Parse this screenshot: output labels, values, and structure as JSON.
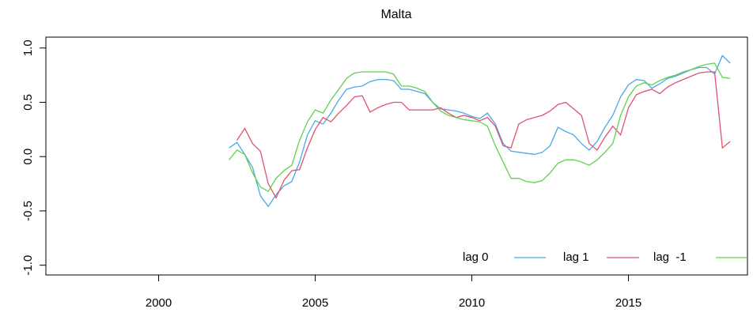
{
  "chart_data": {
    "type": "line",
    "title": "Malta",
    "x": [
      2002.25,
      2002.5,
      2002.75,
      2003,
      2003.25,
      2003.5,
      2003.75,
      2004,
      2004.25,
      2004.5,
      2004.75,
      2005,
      2005.25,
      2005.5,
      2005.75,
      2006,
      2006.25,
      2006.5,
      2006.75,
      2007,
      2007.25,
      2007.5,
      2007.75,
      2008,
      2008.25,
      2008.5,
      2008.75,
      2009,
      2009.25,
      2009.5,
      2009.75,
      2010,
      2010.25,
      2010.5,
      2010.75,
      2011,
      2011.25,
      2011.5,
      2011.75,
      2012,
      2012.25,
      2012.5,
      2012.75,
      2013,
      2013.25,
      2013.5,
      2013.75,
      2014,
      2014.25,
      2014.5,
      2014.75,
      2015,
      2015.25,
      2015.5,
      2015.75,
      2016,
      2016.25,
      2016.5,
      2016.75,
      2017,
      2017.25,
      2017.5,
      2017.75,
      2018,
      2018.25
    ],
    "series": [
      {
        "name": "lag 0",
        "color": "#4aa8e8",
        "values": [
          0.08,
          0.13,
          0.02,
          -0.1,
          -0.36,
          -0.46,
          -0.35,
          -0.27,
          -0.23,
          -0.05,
          0.2,
          0.33,
          0.3,
          0.4,
          0.52,
          0.62,
          0.64,
          0.65,
          0.69,
          0.71,
          0.71,
          0.7,
          0.62,
          0.62,
          0.6,
          0.58,
          0.5,
          0.44,
          0.43,
          0.42,
          0.4,
          0.37,
          0.35,
          0.4,
          0.3,
          0.12,
          0.05,
          0.04,
          0.03,
          0.02,
          0.04,
          0.1,
          0.27,
          0.23,
          0.2,
          0.12,
          0.06,
          0.14,
          0.27,
          0.38,
          0.55,
          0.66,
          0.71,
          0.7,
          0.63,
          0.67,
          0.72,
          0.74,
          0.77,
          0.8,
          0.82,
          0.82,
          0.76,
          0.93,
          0.86
        ]
      },
      {
        "name": "lag 1",
        "color": "#df536b",
        "values": [
          null,
          0.15,
          0.26,
          0.12,
          0.05,
          -0.25,
          -0.38,
          -0.22,
          -0.13,
          -0.12,
          0.08,
          0.25,
          0.36,
          0.32,
          0.4,
          0.47,
          0.55,
          0.56,
          0.41,
          0.45,
          0.48,
          0.5,
          0.5,
          0.43,
          0.43,
          0.43,
          0.43,
          0.45,
          0.4,
          0.36,
          0.38,
          0.36,
          0.33,
          0.36,
          0.28,
          0.1,
          0.08,
          0.3,
          0.34,
          0.36,
          0.38,
          0.42,
          0.48,
          0.5,
          0.44,
          0.38,
          0.12,
          0.06,
          0.18,
          0.28,
          0.2,
          0.45,
          0.57,
          0.6,
          0.62,
          0.58,
          0.64,
          0.68,
          0.71,
          0.74,
          0.77,
          0.78,
          0.78,
          0.08,
          0.14
        ]
      },
      {
        "name": "lag  -1",
        "color": "#61d04f",
        "values": [
          -0.03,
          0.06,
          0.02,
          -0.15,
          -0.28,
          -0.32,
          -0.2,
          -0.13,
          -0.08,
          0.15,
          0.32,
          0.43,
          0.4,
          0.52,
          0.62,
          0.72,
          0.77,
          0.78,
          0.78,
          0.78,
          0.78,
          0.76,
          0.65,
          0.65,
          0.63,
          0.6,
          0.5,
          0.42,
          0.38,
          0.36,
          0.34,
          0.33,
          0.32,
          0.28,
          0.1,
          -0.05,
          -0.2,
          -0.2,
          -0.23,
          -0.24,
          -0.22,
          -0.15,
          -0.06,
          -0.03,
          -0.03,
          -0.05,
          -0.08,
          -0.03,
          0.04,
          0.12,
          0.38,
          0.55,
          0.65,
          0.68,
          0.66,
          0.7,
          0.73,
          0.75,
          0.78,
          0.8,
          0.83,
          0.85,
          0.86,
          0.73,
          0.72
        ]
      }
    ],
    "xlim": [
      1996.4,
      2018.8
    ],
    "ylim": [
      -1.09,
      1.1
    ],
    "xticks": [
      2000,
      2005,
      2010,
      2015
    ],
    "yticks": [
      {
        "value": -1,
        "label": "-1.0"
      },
      -0.5,
      {
        "value": 0,
        "label": "0.0"
      },
      0.5,
      {
        "value": 1,
        "label": "1.0"
      }
    ],
    "legend": "bottom-right"
  }
}
